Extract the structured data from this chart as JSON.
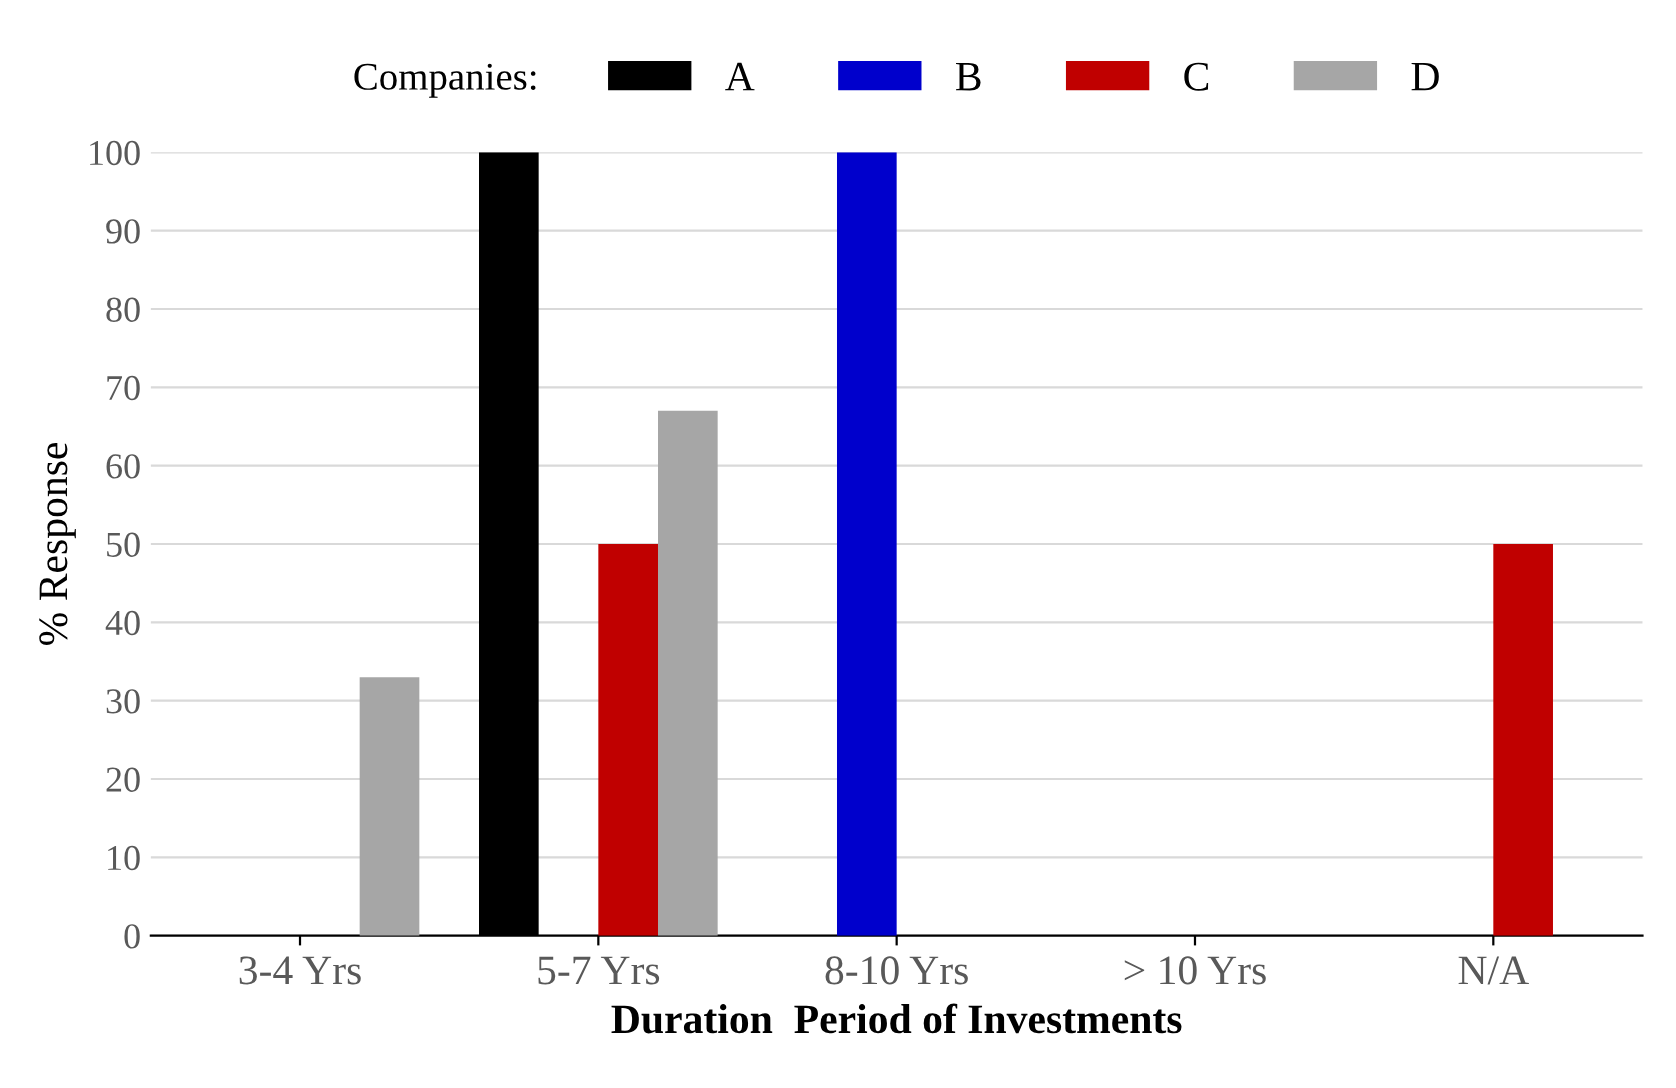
{
  "chart_data": {
    "type": "bar",
    "xlabel": "Duration  Period of Investments",
    "ylabel": "% Response",
    "legend_title": "Companies:",
    "legend": "top",
    "categories": [
      "3-4 Yrs",
      "5-7 Yrs",
      "8-10 Yrs",
      "> 10 Yrs",
      "N/A"
    ],
    "series": [
      {
        "name": "A",
        "color": "#000000",
        "values": [
          0,
          100,
          0,
          0,
          0
        ]
      },
      {
        "name": "B",
        "color": "#0000cc",
        "values": [
          0,
          0,
          100,
          0,
          0
        ]
      },
      {
        "name": "C",
        "color": "#c00000",
        "values": [
          0,
          50,
          0,
          0,
          50
        ]
      },
      {
        "name": "D",
        "color": "#a6a6a6",
        "values": [
          33,
          67,
          0,
          0,
          0
        ]
      }
    ],
    "ylim": [
      0,
      100
    ],
    "yticks": [
      0,
      10,
      20,
      30,
      40,
      50,
      60,
      70,
      80,
      90,
      100
    ],
    "grid": "y"
  }
}
